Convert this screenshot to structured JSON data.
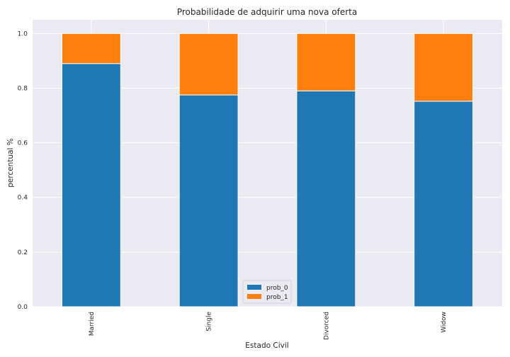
{
  "chart_data": {
    "type": "bar",
    "stacked": true,
    "title": "Probabilidade de adquirir uma nova oferta",
    "xlabel": "Estado Civil",
    "ylabel": "percentual %",
    "categories": [
      "Married",
      "Single",
      "Divorced",
      "Widow"
    ],
    "series": [
      {
        "name": "prob_0",
        "color": "#1f77b4",
        "values": [
          0.89,
          0.775,
          0.79,
          0.752
        ]
      },
      {
        "name": "prob_1",
        "color": "#ff7f0e",
        "values": [
          0.11,
          0.225,
          0.21,
          0.248
        ]
      }
    ],
    "ylim": [
      0,
      1.05
    ],
    "yticks": [
      "0.0",
      "0.2",
      "0.4",
      "0.6",
      "0.8",
      "1.0"
    ],
    "grid": true,
    "legend_position": "bottom-center",
    "background": "#eaeaf2"
  }
}
